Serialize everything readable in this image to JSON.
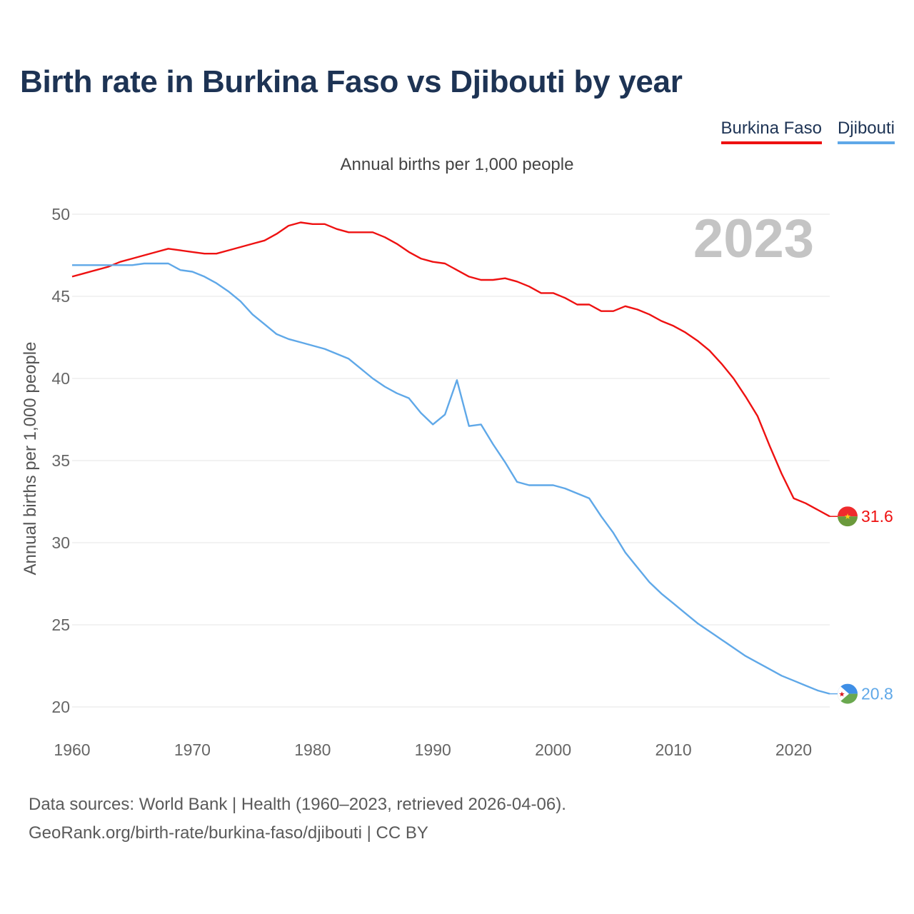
{
  "chart_data": {
    "type": "line",
    "title": "Birth rate in Burkina Faso vs Djibouti by year",
    "subtitle": "Annual births per 1,000 people",
    "ylabel": "Annual births per 1,000 people",
    "xlabel": "",
    "current_year_label": "2023",
    "xlim": [
      1960,
      2023
    ],
    "ylim": [
      20,
      50
    ],
    "x_ticks": [
      1960,
      1970,
      1980,
      1990,
      2000,
      2010,
      2020
    ],
    "y_ticks": [
      20,
      25,
      30,
      35,
      40,
      45,
      50
    ],
    "grid": true,
    "legend_position": "top-right",
    "series": [
      {
        "name": "Burkina Faso",
        "color": "#ee1111",
        "end_label": "31.6",
        "flag": "burkina-faso-flag",
        "x": [
          1960,
          1961,
          1962,
          1963,
          1964,
          1965,
          1966,
          1967,
          1968,
          1969,
          1970,
          1971,
          1972,
          1973,
          1974,
          1975,
          1976,
          1977,
          1978,
          1979,
          1980,
          1981,
          1982,
          1983,
          1984,
          1985,
          1986,
          1987,
          1988,
          1989,
          1990,
          1991,
          1992,
          1993,
          1994,
          1995,
          1996,
          1997,
          1998,
          1999,
          2000,
          2001,
          2002,
          2003,
          2004,
          2005,
          2006,
          2007,
          2008,
          2009,
          2010,
          2011,
          2012,
          2013,
          2014,
          2015,
          2016,
          2017,
          2018,
          2019,
          2020,
          2021,
          2022,
          2023
        ],
        "values": [
          46.2,
          46.4,
          46.6,
          46.8,
          47.1,
          47.3,
          47.5,
          47.7,
          47.9,
          47.8,
          47.7,
          47.6,
          47.6,
          47.8,
          48.0,
          48.2,
          48.4,
          48.8,
          49.3,
          49.5,
          49.4,
          49.4,
          49.1,
          48.9,
          48.9,
          48.9,
          48.6,
          48.2,
          47.7,
          47.3,
          47.1,
          47.0,
          46.6,
          46.2,
          46.0,
          46.0,
          46.1,
          45.9,
          45.6,
          45.2,
          45.2,
          44.9,
          44.5,
          44.5,
          44.1,
          44.1,
          44.4,
          44.2,
          43.9,
          43.5,
          43.2,
          42.8,
          42.3,
          41.7,
          40.9,
          40.0,
          38.9,
          37.7,
          35.9,
          34.2,
          32.7,
          32.4,
          32.0,
          31.6
        ]
      },
      {
        "name": "Djibouti",
        "color": "#5fa8e8",
        "end_label": "20.8",
        "flag": "djibouti-flag",
        "x": [
          1960,
          1961,
          1962,
          1963,
          1964,
          1965,
          1966,
          1967,
          1968,
          1969,
          1970,
          1971,
          1972,
          1973,
          1974,
          1975,
          1976,
          1977,
          1978,
          1979,
          1980,
          1981,
          1982,
          1983,
          1984,
          1985,
          1986,
          1987,
          1988,
          1989,
          1990,
          1991,
          1992,
          1993,
          1994,
          1995,
          1996,
          1997,
          1998,
          1999,
          2000,
          2001,
          2002,
          2003,
          2004,
          2005,
          2006,
          2007,
          2008,
          2009,
          2010,
          2011,
          2012,
          2013,
          2014,
          2015,
          2016,
          2017,
          2018,
          2019,
          2020,
          2021,
          2022,
          2023
        ],
        "values": [
          46.9,
          46.9,
          46.9,
          46.9,
          46.9,
          46.9,
          47.0,
          47.0,
          47.0,
          46.6,
          46.5,
          46.2,
          45.8,
          45.3,
          44.7,
          43.9,
          43.3,
          42.7,
          42.4,
          42.2,
          42.0,
          41.8,
          41.5,
          41.2,
          40.6,
          40.0,
          39.5,
          39.1,
          38.8,
          37.9,
          37.2,
          37.8,
          39.9,
          37.1,
          37.2,
          36.0,
          34.9,
          33.7,
          33.5,
          33.5,
          33.5,
          33.3,
          33.0,
          32.7,
          31.6,
          30.6,
          29.4,
          28.5,
          27.6,
          26.9,
          26.3,
          25.7,
          25.1,
          24.6,
          24.1,
          23.6,
          23.1,
          22.7,
          22.3,
          21.9,
          21.6,
          21.3,
          21.0,
          20.8
        ]
      }
    ]
  },
  "legend": {
    "items": [
      {
        "label": "Burkina Faso"
      },
      {
        "label": "Djibouti"
      }
    ]
  },
  "footer": {
    "source_line": "Data sources: World Bank | Health (1960–2023, retrieved 2026-04-06).",
    "credit_line": "GeoRank.org/birth-rate/burkina-faso/djibouti | CC BY"
  },
  "colors": {
    "title": "#1d3354",
    "grid": "#e6e6e6",
    "tick_text": "#666666",
    "year_watermark": "#c4c4c4",
    "bf_red": "#ef2b2d",
    "bf_green": "#6b9a3c",
    "bf_star": "#fcd116",
    "dj_blue": "#3f8fe6",
    "dj_green": "#6aa84f",
    "dj_star": "#d7141a"
  }
}
